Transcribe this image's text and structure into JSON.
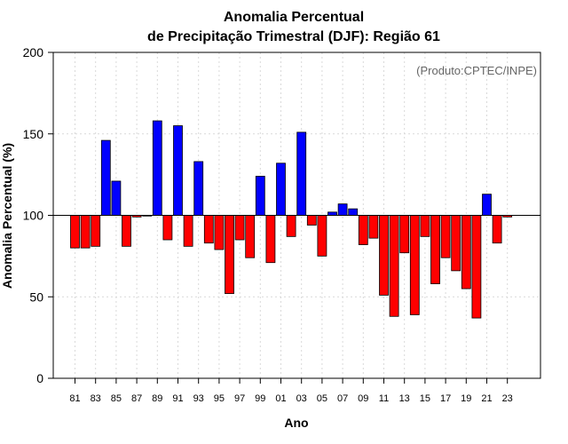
{
  "chart_data": {
    "type": "bar",
    "title_line1": "Anomalia Percentual",
    "title_line2": "de Precipitação Trimestral (DJF): Região 61",
    "xlabel": "Ano",
    "ylabel": "Anomalia Percentual (%)",
    "credit": "(Produto:CPTEC/INPE)",
    "ylim": [
      0,
      200
    ],
    "yticks": [
      0,
      50,
      100,
      150,
      200
    ],
    "baseline": 100,
    "grid": true,
    "colors": {
      "above": "#0000ff",
      "below": "#ff0000",
      "edge": "#000000",
      "grid": "#d9d9d9"
    },
    "categories": [
      "81",
      "82",
      "83",
      "84",
      "85",
      "86",
      "87",
      "88",
      "89",
      "90",
      "91",
      "92",
      "93",
      "94",
      "95",
      "96",
      "97",
      "98",
      "99",
      "00",
      "01",
      "02",
      "03",
      "04",
      "05",
      "06",
      "07",
      "08",
      "09",
      "10",
      "11",
      "12",
      "13",
      "14",
      "15",
      "16",
      "17",
      "18",
      "19",
      "20",
      "21",
      "22",
      "23"
    ],
    "xtick_labels": [
      "81",
      "83",
      "85",
      "87",
      "89",
      "91",
      "93",
      "95",
      "97",
      "99",
      "01",
      "03",
      "05",
      "07",
      "09",
      "11",
      "13",
      "15",
      "17",
      "19",
      "21",
      "23"
    ],
    "values": [
      80,
      80,
      81,
      146,
      121,
      81,
      99,
      100,
      158,
      85,
      155,
      81,
      133,
      83,
      79,
      52,
      85,
      74,
      124,
      71,
      132,
      87,
      151,
      94,
      75,
      102,
      107,
      104,
      82,
      86,
      51,
      38,
      77,
      39,
      87,
      58,
      74,
      66,
      55,
      37,
      113,
      83,
      99
    ]
  }
}
